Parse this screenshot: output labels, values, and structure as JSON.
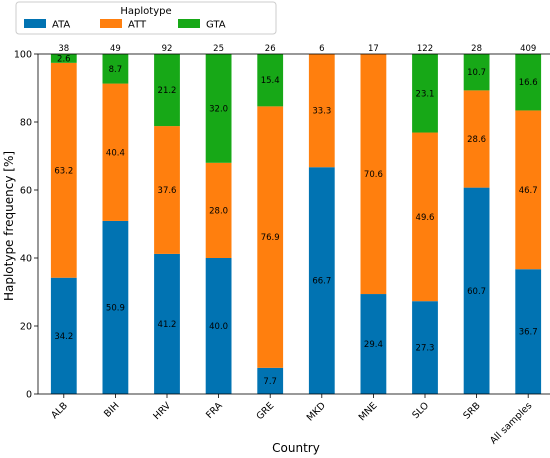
{
  "chart_data": {
    "type": "bar",
    "stacked": true,
    "categories": [
      "ALB",
      "BIH",
      "HRV",
      "FRA",
      "GRE",
      "MKD",
      "MNE",
      "SLO",
      "SRB",
      "All samples"
    ],
    "sample_counts": [
      "38",
      "49",
      "92",
      "25",
      "26",
      "6",
      "17",
      "122",
      "28",
      "409"
    ],
    "series": [
      {
        "name": "ATA",
        "color": "#0173b2",
        "values": [
          34.2,
          50.9,
          41.2,
          40.0,
          7.7,
          66.7,
          29.4,
          27.3,
          60.7,
          36.7
        ]
      },
      {
        "name": "ATT",
        "color": "#ff7f0e",
        "values": [
          63.2,
          40.4,
          37.6,
          28.0,
          76.9,
          33.3,
          70.6,
          49.6,
          28.6,
          46.7
        ]
      },
      {
        "name": "GTA",
        "color": "#17a817",
        "values": [
          2.6,
          8.7,
          21.2,
          32.0,
          15.4,
          0,
          0,
          23.1,
          10.7,
          16.6
        ]
      }
    ],
    "xlabel": "Country",
    "ylabel": "Haplotype frequency [%]",
    "ylim": [
      0,
      100
    ],
    "yticks": [
      0,
      20,
      40,
      60,
      80,
      100
    ],
    "legend": {
      "title": "Haplotype",
      "position": "top-left"
    },
    "grid": false
  }
}
